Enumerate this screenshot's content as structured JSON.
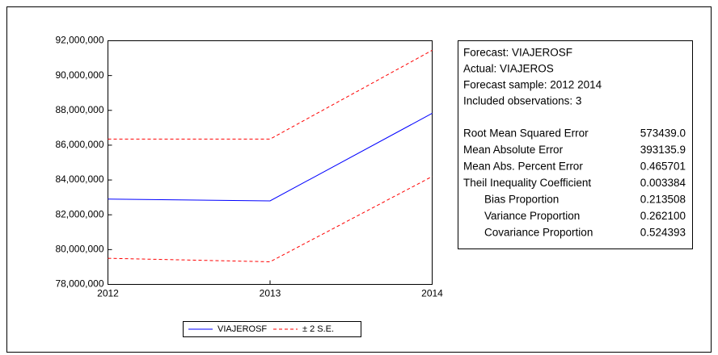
{
  "chart_data": {
    "type": "line",
    "x": [
      2012,
      2013,
      2014
    ],
    "xlim": [
      2012,
      2014
    ],
    "xticks": [
      2012,
      2013,
      2014
    ],
    "ylim": [
      78000000,
      92000000
    ],
    "yticks": [
      {
        "value": 78000000,
        "label": "78,000,000"
      },
      {
        "value": 80000000,
        "label": "80,000,000"
      },
      {
        "value": 82000000,
        "label": "82,000,000"
      },
      {
        "value": 84000000,
        "label": "84,000,000"
      },
      {
        "value": 86000000,
        "label": "86,000,000"
      },
      {
        "value": 88000000,
        "label": "88,000,000"
      },
      {
        "value": 90000000,
        "label": "90,000,000"
      },
      {
        "value": 92000000,
        "label": "92,000,000"
      }
    ],
    "series": [
      {
        "name": "VIAJEROSF",
        "color": "#0000ff",
        "dashed": false,
        "values": [
          82900000,
          82800000,
          87830000
        ]
      },
      {
        "name": "± 2 S.E.",
        "color": "#ff0000",
        "dashed": true,
        "values": [
          86350000,
          86350000,
          91450000
        ],
        "lower": [
          79500000,
          79300000,
          84200000
        ]
      }
    ]
  },
  "stats_box": {
    "header": [
      "Forecast: VIAJEROSF",
      "Actual: VIAJEROS",
      "Forecast sample: 2012 2014",
      "Included observations: 3"
    ],
    "rows": [
      [
        "Root Mean Squared Error",
        "573439.0"
      ],
      [
        "Mean Absolute Error",
        "393135.9"
      ],
      [
        "Mean Abs. Percent Error",
        "0.465701"
      ],
      [
        "Theil Inequality Coefficient",
        "0.003384"
      ],
      [
        "Bias Proportion",
        "0.213508"
      ],
      [
        "Variance Proportion",
        "0.262100"
      ],
      [
        "Covariance Proportion",
        "0.524393"
      ]
    ]
  }
}
